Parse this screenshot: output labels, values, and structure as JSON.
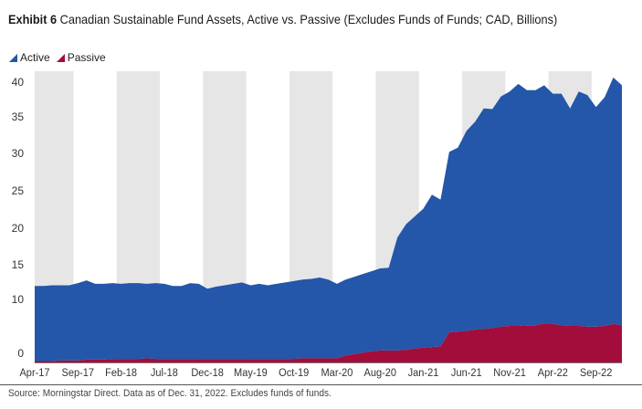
{
  "chart_data": {
    "type": "area",
    "stacked": true,
    "grid": false,
    "exhibit": "Exhibit 6",
    "title": "Canadian Sustainable Fund Assets, Active vs. Passive (Excludes Funds of Funds; CAD, Billions)",
    "xlabel": "",
    "ylabel": "",
    "ylim": [
      0,
      41.5
    ],
    "y_ticks": [
      "40",
      "35",
      "30",
      "25",
      "20",
      "15",
      "10",
      "0"
    ],
    "x_tick_labels": [
      "Apr-17",
      "Sep-17",
      "Feb-18",
      "Jul-18",
      "Dec-18",
      "May-19",
      "Oct-19",
      "Mar-20",
      "Aug-20",
      "Jan-21",
      "Jun-21",
      "Nov-21",
      "Apr-22",
      "Sep-22"
    ],
    "x_tick_step": 5,
    "legend_position": "top-left",
    "series": [
      {
        "name": "Active",
        "color": "#2456A9",
        "values": [
          10.7,
          10.7,
          10.8,
          10.7,
          10.7,
          11.0,
          11.3,
          10.8,
          10.8,
          10.8,
          10.7,
          10.8,
          10.8,
          10.6,
          10.8,
          10.7,
          10.4,
          10.4,
          10.8,
          10.7,
          10.0,
          10.3,
          10.5,
          10.7,
          10.9,
          10.5,
          10.7,
          10.5,
          10.7,
          10.9,
          11.1,
          11.2,
          11.3,
          11.5,
          11.2,
          10.6,
          10.8,
          11.0,
          11.2,
          11.4,
          11.7,
          11.8,
          16.1,
          17.9,
          18.8,
          19.8,
          21.7,
          20.9,
          25.7,
          26.2,
          28.5,
          29.6,
          31.4,
          31.2,
          32.8,
          33.4,
          34.5,
          33.5,
          33.5,
          33.9,
          32.8,
          33.0,
          31.0,
          33.4,
          33.0,
          31.3,
          32.6,
          35.1,
          34.2
        ]
      },
      {
        "name": "Passive",
        "color": "#A30D3C",
        "values": [
          0.2,
          0.2,
          0.2,
          0.3,
          0.3,
          0.3,
          0.4,
          0.4,
          0.4,
          0.5,
          0.5,
          0.5,
          0.5,
          0.6,
          0.5,
          0.5,
          0.5,
          0.5,
          0.5,
          0.5,
          0.5,
          0.5,
          0.5,
          0.5,
          0.5,
          0.5,
          0.5,
          0.5,
          0.5,
          0.5,
          0.5,
          0.6,
          0.6,
          0.6,
          0.6,
          0.6,
          1.0,
          1.2,
          1.4,
          1.6,
          1.7,
          1.7,
          1.7,
          1.8,
          2.0,
          2.1,
          2.2,
          2.3,
          4.3,
          4.4,
          4.5,
          4.7,
          4.8,
          4.9,
          5.1,
          5.2,
          5.2,
          5.3,
          5.3,
          5.6,
          5.5,
          5.3,
          5.2,
          5.2,
          5.1,
          5.1,
          5.2,
          5.5,
          5.3
        ]
      }
    ]
  },
  "footer": {
    "source": "Source: Morningstar Direct. Data as of Dec. 31, 2022. Excludes funds of funds."
  }
}
